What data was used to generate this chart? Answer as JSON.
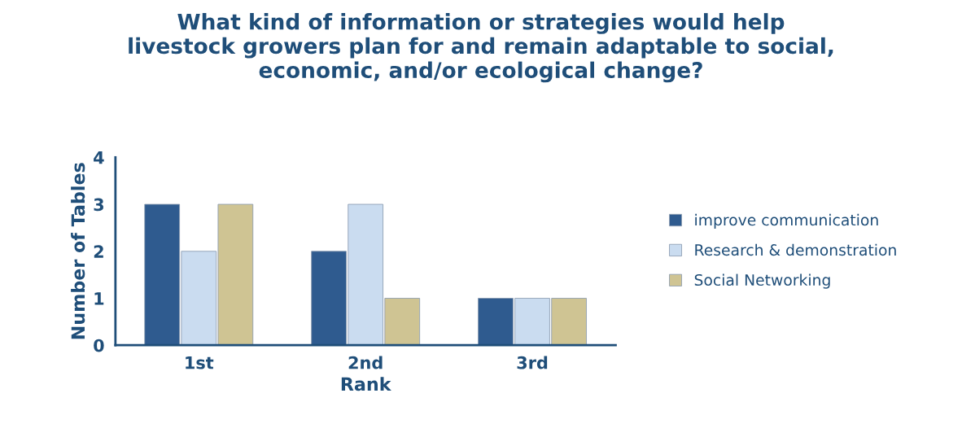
{
  "chart_data": {
    "type": "bar",
    "title": "What kind of information or strategies would help\nlivestock growers plan for and remain adaptable to social,\neconomic, and/or ecological change?",
    "xlabel": "Rank",
    "ylabel": "Number of Tables",
    "categories": [
      "1st",
      "2nd",
      "3rd"
    ],
    "series": [
      {
        "name": "improve communication",
        "color": "#2f5b8f",
        "values": [
          3,
          2,
          1
        ]
      },
      {
        "name": "Research & demonstration",
        "color": "#cadcf0",
        "values": [
          2,
          3,
          1
        ]
      },
      {
        "name": "Social Networking",
        "color": "#cfc493",
        "values": [
          3,
          1,
          1
        ]
      }
    ],
    "ylim": [
      0,
      4
    ],
    "yticks": [
      0,
      1,
      2,
      3,
      4
    ],
    "grid": false,
    "legend": "right"
  }
}
